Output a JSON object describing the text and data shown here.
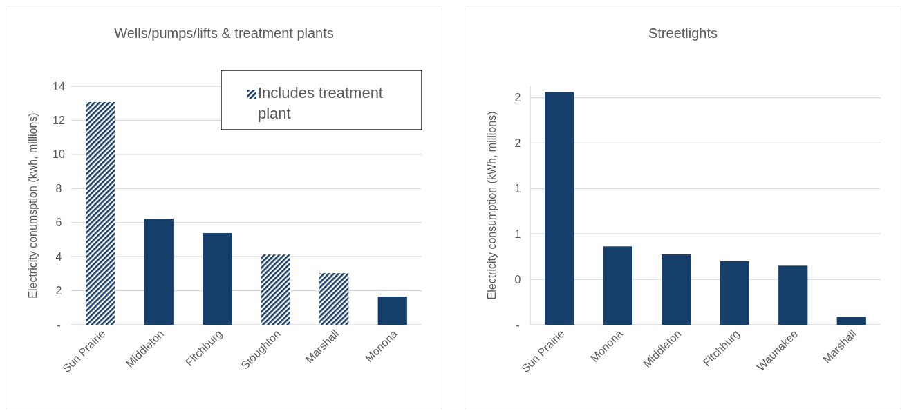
{
  "chart_data": [
    {
      "type": "bar",
      "title": "Wells/pumps/lifts & treatment plants",
      "ylabel": "Electricity conumsption (kwh, millions)",
      "categories": [
        "Sun Prairie",
        "Middleton",
        "Fitchburg",
        "Stoughton",
        "Marshall",
        "Monona"
      ],
      "stacked": true,
      "series": [
        {
          "color": "#153e6a",
          "values": [
            null,
            6.22,
            5.38,
            null,
            null,
            1.66
          ]
        },
        {
          "name": "Includes treatment plant",
          "color": "#153e6a",
          "values": [
            13.07,
            null,
            null,
            4.12,
            3.03,
            null
          ]
        }
      ],
      "ylim": [
        0,
        14
      ],
      "yticks": [
        {
          "value": 0,
          "label": "-"
        },
        2,
        4,
        6,
        8,
        10,
        12,
        14
      ],
      "grid": "y",
      "legend": "top right"
    },
    {
      "type": "bar",
      "title": "Streetlights",
      "ylabel": "Electricity consumption  (kWh, millions)",
      "categories": [
        "Sun Prairie",
        "Monona",
        "Middleton",
        "Fitchburg",
        "Waunakee",
        "Marshall"
      ],
      "series": [
        {
          "color": "#153e6a",
          "values": [
            2.05,
            0.69,
            0.62,
            0.56,
            0.52,
            0.07
          ]
        }
      ],
      "ylim": [
        0,
        2.1
      ],
      "yticks": [
        {
          "value": 0,
          "label": "-"
        },
        {
          "value": 0.4,
          "label": "0"
        },
        {
          "value": 0.8,
          "label": "1"
        },
        {
          "value": 1.2,
          "label": "1"
        },
        {
          "value": 1.6,
          "label": "2"
        },
        {
          "value": 2.0,
          "label": "2"
        }
      ],
      "grid": "y"
    }
  ]
}
